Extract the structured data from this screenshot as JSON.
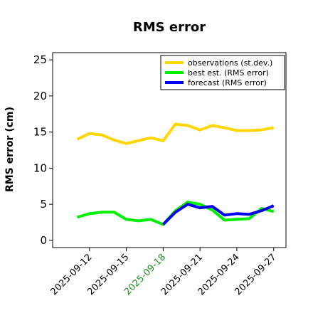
{
  "chart_data": {
    "type": "line",
    "title": "RMS error",
    "ylabel": "RMS error (cm)",
    "xlabel": "",
    "ylim": [
      -1,
      26
    ],
    "xlim": [
      "2025-09-09",
      "2025-09-28"
    ],
    "yticks": [
      0,
      5,
      10,
      15,
      20,
      25
    ],
    "xticks": [
      "2025-09-12",
      "2025-09-15",
      "2025-09-18",
      "2025-09-21",
      "2025-09-24",
      "2025-09-27"
    ],
    "highlight_tick": "2025-09-18",
    "highlight_color": "#228B22",
    "grid": false,
    "legend_position": "top-right",
    "series": [
      {
        "name": "observations (st.dev.)",
        "color": "#FFD700",
        "points": [
          [
            "2025-09-11",
            14.0
          ],
          [
            "2025-09-12",
            14.8
          ],
          [
            "2025-09-13",
            14.6
          ],
          [
            "2025-09-14",
            13.9
          ],
          [
            "2025-09-15",
            13.4
          ],
          [
            "2025-09-16",
            13.8
          ],
          [
            "2025-09-17",
            14.2
          ],
          [
            "2025-09-18",
            13.8
          ],
          [
            "2025-09-19",
            16.1
          ],
          [
            "2025-09-20",
            15.9
          ],
          [
            "2025-09-21",
            15.3
          ],
          [
            "2025-09-22",
            15.9
          ],
          [
            "2025-09-23",
            15.6
          ],
          [
            "2025-09-24",
            15.2
          ],
          [
            "2025-09-25",
            15.2
          ],
          [
            "2025-09-26",
            15.3
          ],
          [
            "2025-09-27",
            15.6
          ]
        ]
      },
      {
        "name": "best est. (RMS error)",
        "color": "#00EE00",
        "points": [
          [
            "2025-09-11",
            3.2
          ],
          [
            "2025-09-12",
            3.7
          ],
          [
            "2025-09-13",
            3.9
          ],
          [
            "2025-09-14",
            3.9
          ],
          [
            "2025-09-15",
            2.9
          ],
          [
            "2025-09-16",
            2.7
          ],
          [
            "2025-09-17",
            2.9
          ],
          [
            "2025-09-18",
            2.2
          ],
          [
            "2025-09-19",
            4.1
          ],
          [
            "2025-09-20",
            5.3
          ],
          [
            "2025-09-21",
            5.0
          ],
          [
            "2025-09-22",
            4.2
          ],
          [
            "2025-09-23",
            2.8
          ],
          [
            "2025-09-24",
            2.9
          ],
          [
            "2025-09-25",
            3.0
          ],
          [
            "2025-09-26",
            4.4
          ],
          [
            "2025-09-27",
            4.0
          ]
        ]
      },
      {
        "name": "forecast (RMS error)",
        "color": "#0000EE",
        "points": [
          [
            "2025-09-18",
            2.2
          ],
          [
            "2025-09-19",
            3.9
          ],
          [
            "2025-09-20",
            5.0
          ],
          [
            "2025-09-21",
            4.5
          ],
          [
            "2025-09-22",
            4.7
          ],
          [
            "2025-09-23",
            3.5
          ],
          [
            "2025-09-24",
            3.7
          ],
          [
            "2025-09-25",
            3.6
          ],
          [
            "2025-09-26",
            4.1
          ],
          [
            "2025-09-27",
            4.8
          ]
        ]
      }
    ]
  }
}
